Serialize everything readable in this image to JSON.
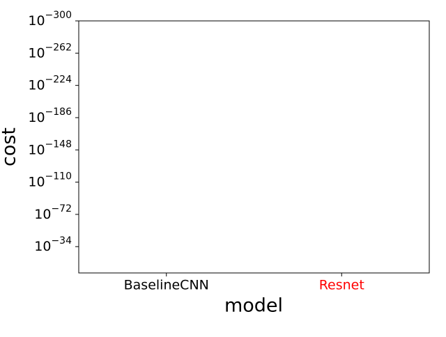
{
  "chart_data": {
    "type": "bar",
    "xlabel": "model",
    "ylabel": "cost",
    "categories": [
      "BaselineCNN",
      "Resnet"
    ],
    "category_label_colors": [
      "#000000",
      "#ff0000"
    ],
    "log_scale_y": true,
    "ylim": [
      0.001,
      1e-300
    ],
    "yticks": [
      {
        "value": 1e-300,
        "label": "10−300"
      },
      {
        "value": 1e-262,
        "label": "10−262"
      },
      {
        "value": 1e-224,
        "label": "10−224"
      },
      {
        "value": 1e-186,
        "label": "10−186"
      },
      {
        "value": 1e-148,
        "label": "10−148"
      },
      {
        "value": 1e-110,
        "label": "10−110"
      },
      {
        "value": 1e-72,
        "label": "10−72"
      },
      {
        "value": 1e-34,
        "label": "10−34"
      }
    ]
  }
}
